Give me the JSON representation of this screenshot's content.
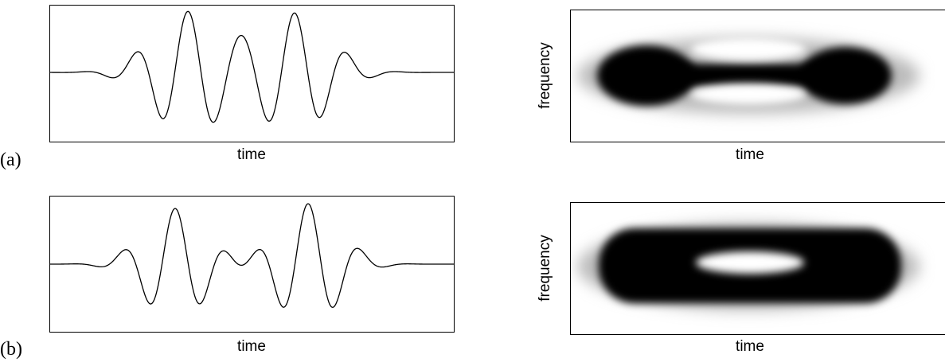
{
  "panels": [
    {
      "label": "(a)",
      "waveform": {
        "xlabel": "time"
      },
      "spectrogram": {
        "xlabel": "time",
        "ylabel": "frequency"
      }
    },
    {
      "label": "(b)",
      "waveform": {
        "xlabel": "time"
      },
      "spectrogram": {
        "xlabel": "time",
        "ylabel": "frequency"
      }
    }
  ]
}
